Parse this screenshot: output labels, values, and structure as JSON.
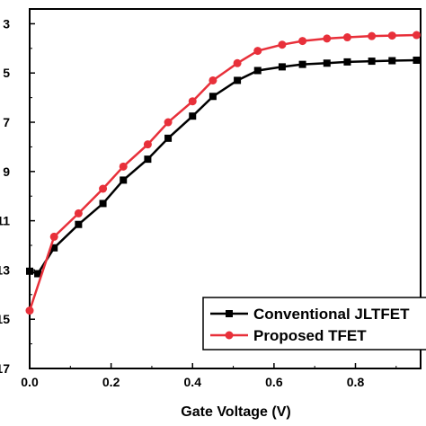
{
  "chart_data": {
    "type": "line",
    "xlabel": "Gate Voltage (V)",
    "ylabel": "",
    "xlim": [
      0,
      0.96
    ],
    "ylim": [
      -17,
      -2.4
    ],
    "x_ticks": [
      "0.0",
      "0.2",
      "0.4",
      "0.6",
      "0.8"
    ],
    "y_ticks": [
      "3",
      "5",
      "7",
      "9",
      "11",
      "13",
      "15",
      "17"
    ],
    "legend_position": "bottom-right",
    "grid": false,
    "series": [
      {
        "name": "Conventional JLTFET",
        "color": "#000000",
        "marker": "square",
        "x": [
          0,
          0.02,
          0.06,
          0.12,
          0.18,
          0.23,
          0.29,
          0.34,
          0.4,
          0.45,
          0.51,
          0.56,
          0.62,
          0.67,
          0.73,
          0.78,
          0.84,
          0.89,
          0.95
        ],
        "y": [
          -13.05,
          -13.15,
          -12.1,
          -11.15,
          -10.3,
          -9.35,
          -8.5,
          -7.65,
          -6.75,
          -5.95,
          -5.3,
          -4.9,
          -4.75,
          -4.65,
          -4.6,
          -4.55,
          -4.52,
          -4.5,
          -4.48
        ]
      },
      {
        "name": "Proposed TFET",
        "color": "#e8303a",
        "marker": "circle",
        "x": [
          0,
          0.06,
          0.12,
          0.18,
          0.23,
          0.29,
          0.34,
          0.4,
          0.45,
          0.51,
          0.56,
          0.62,
          0.67,
          0.73,
          0.78,
          0.84,
          0.89,
          0.95
        ],
        "y": [
          -14.65,
          -11.65,
          -10.7,
          -9.7,
          -8.8,
          -7.9,
          -7.0,
          -6.15,
          -5.3,
          -4.6,
          -4.1,
          -3.85,
          -3.7,
          -3.6,
          -3.55,
          -3.5,
          -3.48,
          -3.46
        ]
      }
    ]
  }
}
